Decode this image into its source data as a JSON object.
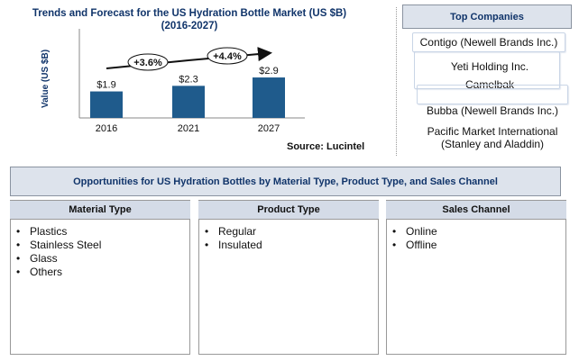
{
  "chart": {
    "title_line1": "Trends and Forecast for the US Hydration Bottle Market (US $B)",
    "title_line2": "(2016-2027)",
    "source": "Source: Lucintel",
    "colors": {
      "bar": "#1f5b8c",
      "arrow": "#111111"
    }
  },
  "chart_data": {
    "type": "bar",
    "categories": [
      "2016",
      "2021",
      "2027"
    ],
    "values": [
      1.9,
      2.3,
      2.9
    ],
    "data_labels": [
      "$1.9",
      "$2.3",
      "$2.9"
    ],
    "cagr_labels": [
      "+3.6%",
      "+4.4%"
    ],
    "ylabel": "Value (US $B)",
    "xlabel": "",
    "ylim": [
      0,
      3.5
    ],
    "grid": false
  },
  "top_companies": {
    "header": "Top Companies",
    "items": [
      "Contigo (Newell Brands Inc.)",
      "Yeti Holding Inc.",
      "Camelbak",
      "Bubba (Newell Brands Inc.)",
      "Pacific Market International (Stanley and Aladdin)"
    ]
  },
  "opportunities": {
    "header": "Opportunities for US Hydration Bottles by Material Type, Product Type, and Sales Channel",
    "segments": [
      {
        "title": "Material Type",
        "items": [
          "Plastics",
          "Stainless Steel",
          "Glass",
          "Others"
        ]
      },
      {
        "title": "Product Type",
        "items": [
          "Regular",
          "Insulated"
        ]
      },
      {
        "title": "Sales Channel",
        "items": [
          "Online",
          "Offline"
        ]
      }
    ]
  }
}
